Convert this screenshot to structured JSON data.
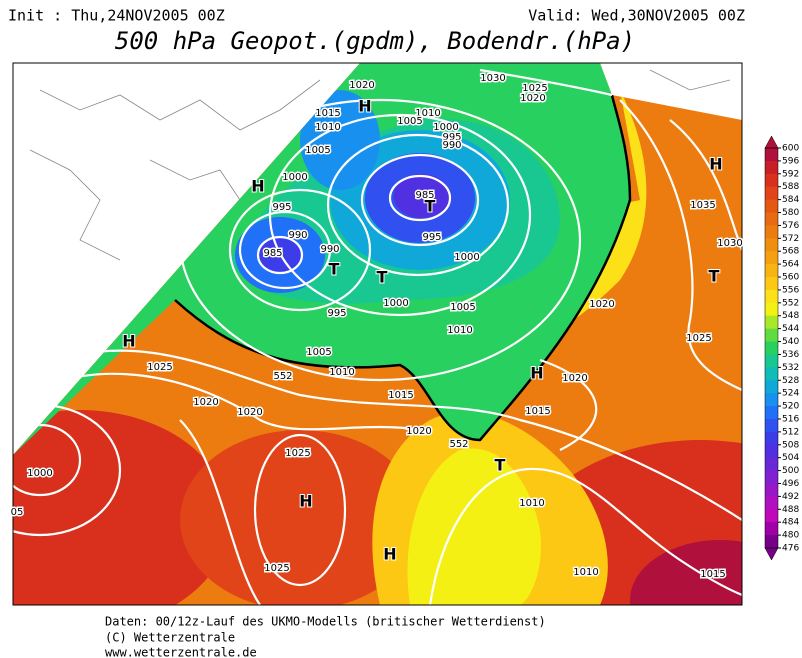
{
  "header": {
    "init": "Init : Thu,24NOV2005 00Z",
    "valid": "Valid: Wed,30NOV2005 00Z",
    "title": "500 hPa Geopot.(gpdm), Bodendr.(hPa)"
  },
  "legend": {
    "levels": [
      600,
      596,
      592,
      588,
      584,
      580,
      576,
      572,
      568,
      564,
      560,
      556,
      552,
      548,
      544,
      540,
      536,
      532,
      528,
      524,
      520,
      516,
      512,
      508,
      504,
      500,
      496,
      492,
      488,
      484,
      480,
      476
    ],
    "colors": [
      "#b0103c",
      "#c81e28",
      "#d8301c",
      "#e04418",
      "#e45814",
      "#e86a12",
      "#ec7c10",
      "#f08e10",
      "#f4a010",
      "#f8b412",
      "#fcc814",
      "#fce018",
      "#f4f014",
      "#a8e828",
      "#60dc40",
      "#28d060",
      "#18c890",
      "#10bcb8",
      "#10a8d8",
      "#1890f0",
      "#2070f8",
      "#3050f0",
      "#3c3ce8",
      "#5030e0",
      "#6828d8",
      "#8020d0",
      "#9818c8",
      "#b010c0",
      "#c008b8",
      "#a000a8",
      "#780088"
    ]
  },
  "map": {
    "labels": [
      "1020",
      "H",
      "1015",
      "1010",
      "1030",
      "1025",
      "1020",
      "1010",
      "1005",
      "1000",
      "995",
      "990",
      "1005",
      "1000",
      "H",
      "985",
      "T",
      "995",
      "990",
      "990",
      "985",
      "T",
      "T",
      "995",
      "1000",
      "995",
      "1000",
      "1005",
      "1010",
      "1005",
      "1010",
      "552",
      "H",
      "1025",
      "1020",
      "1020",
      "1015",
      "1020",
      "552",
      "H",
      "1020",
      "1015",
      "1020",
      "T",
      "1010",
      "1025",
      "H",
      "1025",
      "H",
      "1000",
      "05",
      "1010",
      "1015",
      "H",
      "1035",
      "1030",
      "T",
      "1025"
    ]
  },
  "footer": [
    "Daten: 00/12z-Lauf des UKMO-Modells (britischer Wetterdienst)",
    "(C) Wetterzentrale",
    "www.wetterzentrale.de"
  ]
}
